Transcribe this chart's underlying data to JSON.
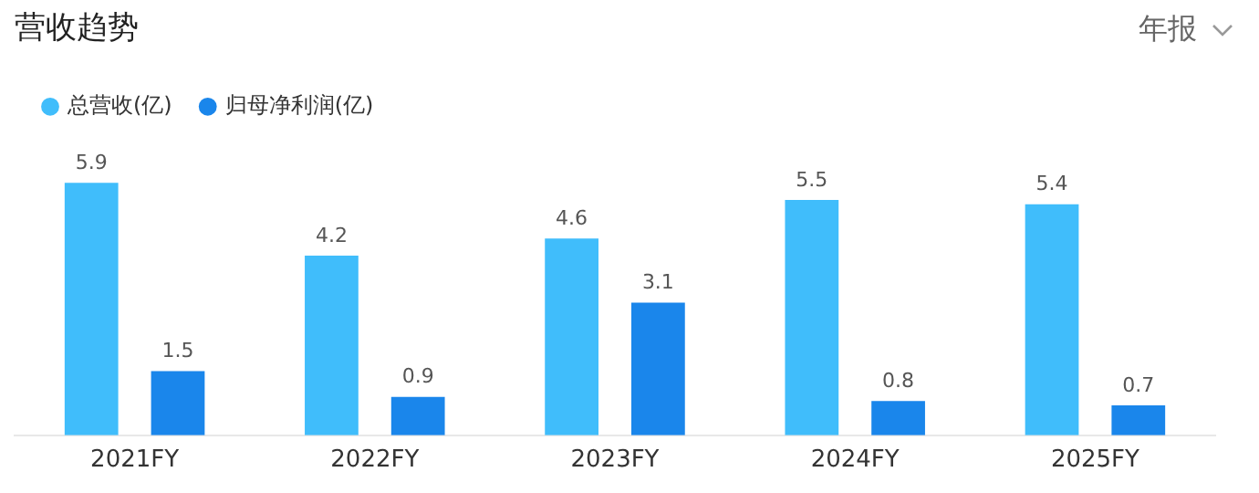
{
  "chart_data": {
    "type": "bar",
    "title": "营收趋势",
    "annotations": [
      "年报"
    ],
    "categories": [
      "2021FY",
      "2022FY",
      "2023FY",
      "2024FY",
      "2025FY"
    ],
    "series": [
      {
        "name": "总营收(亿)",
        "color": "#40bdfb",
        "values": [
          5.9,
          4.2,
          4.6,
          5.5,
          5.4
        ]
      },
      {
        "name": "归母净利润(亿)",
        "color": "#1a86eb",
        "values": [
          1.5,
          0.9,
          3.1,
          0.8,
          0.7
        ]
      }
    ],
    "data_labels": true,
    "legend": "top left",
    "grid": false
  }
}
